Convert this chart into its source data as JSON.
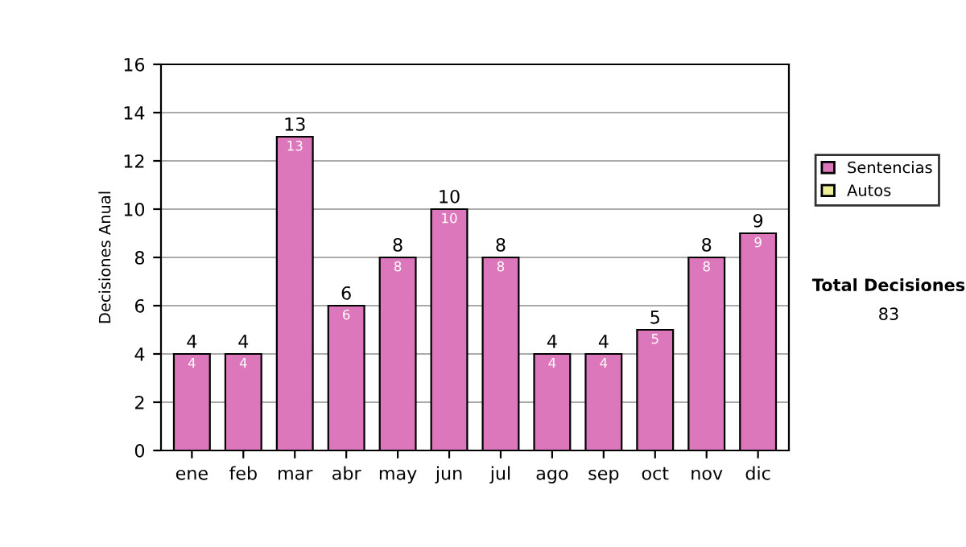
{
  "chart_data": {
    "type": "bar",
    "ylabel": "Decisiones Anual",
    "categories": [
      "ene",
      "feb",
      "mar",
      "abr",
      "may",
      "jun",
      "jul",
      "ago",
      "sep",
      "oct",
      "nov",
      "dic"
    ],
    "series": [
      {
        "name": "Sentencias",
        "color": "#dd77bb",
        "values": [
          4,
          4,
          13,
          6,
          8,
          10,
          8,
          4,
          4,
          5,
          8,
          9
        ],
        "value_labels": [
          "4",
          "4",
          "13",
          "6",
          "8",
          "10",
          "8",
          "4",
          "4",
          "5",
          "8",
          "9"
        ]
      },
      {
        "name": "Autos",
        "color": "#eeee99",
        "values": [
          0,
          0,
          0,
          0,
          0,
          0,
          0,
          0,
          0,
          0,
          0,
          0
        ]
      }
    ],
    "stacked": true,
    "totals": [
      "4",
      "4",
      "13",
      "6",
      "8",
      "10",
      "8",
      "4",
      "4",
      "5",
      "8",
      "9"
    ],
    "ylim": [
      0,
      16
    ],
    "yticks": [
      0,
      2,
      4,
      6,
      8,
      10,
      12,
      14,
      16
    ],
    "grid": "y",
    "legend": "right",
    "annotations": [
      "Total Decisiones",
      "83"
    ]
  }
}
